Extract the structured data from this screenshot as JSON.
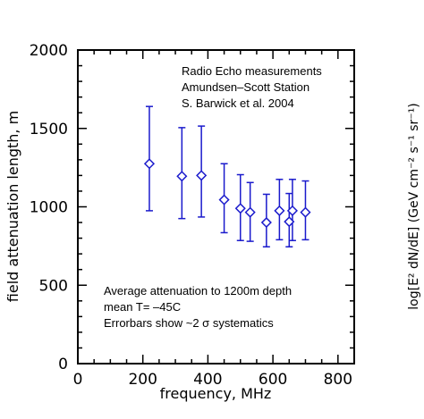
{
  "chart_data": {
    "type": "scatter",
    "xlabel": "frequency, MHz",
    "ylabel": "field attenuation length, m",
    "xlim": [
      0,
      850
    ],
    "ylim": [
      0,
      2000
    ],
    "xticks": [
      0,
      200,
      400,
      600,
      800
    ],
    "yticks": [
      0,
      500,
      1000,
      1500,
      2000
    ],
    "grid": false,
    "marker": "diamond-open",
    "series_color": "#1a1acc",
    "points": [
      {
        "x": 220,
        "y": 1275,
        "ylow": 975,
        "yhigh": 1640
      },
      {
        "x": 320,
        "y": 1195,
        "ylow": 925,
        "yhigh": 1505
      },
      {
        "x": 380,
        "y": 1200,
        "ylow": 935,
        "yhigh": 1515
      },
      {
        "x": 450,
        "y": 1045,
        "ylow": 835,
        "yhigh": 1275
      },
      {
        "x": 500,
        "y": 990,
        "ylow": 785,
        "yhigh": 1205
      },
      {
        "x": 530,
        "y": 965,
        "ylow": 780,
        "yhigh": 1155
      },
      {
        "x": 580,
        "y": 900,
        "ylow": 745,
        "yhigh": 1080
      },
      {
        "x": 620,
        "y": 975,
        "ylow": 790,
        "yhigh": 1175
      },
      {
        "x": 650,
        "y": 905,
        "ylow": 745,
        "yhigh": 1085
      },
      {
        "x": 660,
        "y": 975,
        "ylow": 785,
        "yhigh": 1175
      },
      {
        "x": 700,
        "y": 965,
        "ylow": 790,
        "yhigh": 1165
      }
    ],
    "annotations_top": [
      "Radio Echo measurements",
      "Amundsen–Scott Station",
      "S. Barwick et al. 2004"
    ],
    "annotations_bottom": [
      "Average attenuation to 1200m depth",
      "mean T= –45C",
      "Errorbars show ~2 σ  systematics"
    ]
  },
  "side_label": "log[E² dN/dE] (GeV cm⁻² s⁻¹ sr⁻¹)"
}
